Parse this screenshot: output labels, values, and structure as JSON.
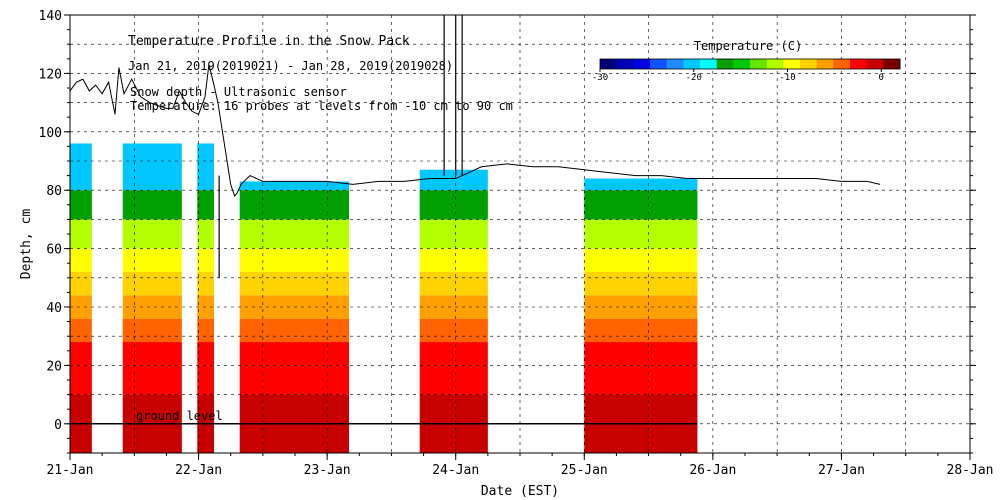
{
  "chart_data": {
    "type": "heatmap",
    "title": "Temperature Profile in the Snow Pack",
    "subtitle": "Jan 21, 2019(2019021) - Jan 28, 2019(2019028)",
    "notes": [
      "Snow depth - Ultrasonic sensor",
      "Temperature: 16 probes at levels from -10 cm to 90 cm"
    ],
    "xlabel": "Date (EST)",
    "ylabel": "Depth, cm",
    "x_ticks": [
      "21-Jan",
      "22-Jan",
      "23-Jan",
      "24-Jan",
      "25-Jan",
      "26-Jan",
      "27-Jan",
      "28-Jan"
    ],
    "xlim_days": [
      0,
      7
    ],
    "ylim": [
      -10,
      140
    ],
    "y_ticks": [
      0,
      20,
      40,
      60,
      80,
      100,
      120,
      140
    ],
    "ground_level_label": "ground level",
    "grid": "dashed",
    "colorbar": {
      "title": "Temperature (C)",
      "range": [
        -30,
        2
      ],
      "tick_labels": [
        "-30",
        "-20",
        "-10",
        "0"
      ],
      "tick_values": [
        -30,
        -20,
        -10,
        0
      ],
      "colors": [
        "#00007a",
        "#0000b4",
        "#0000e6",
        "#1450ff",
        "#1e8cff",
        "#00c8ff",
        "#00ffff",
        "#00a000",
        "#00c800",
        "#64e600",
        "#b4ff00",
        "#ffff00",
        "#ffd200",
        "#ffa000",
        "#ff6400",
        "#ff0000",
        "#c80000",
        "#780000"
      ]
    },
    "profile_bands": [
      {
        "depth_range": [
          -10,
          10
        ],
        "temperature_c": -1
      },
      {
        "depth_range": [
          10,
          20
        ],
        "temperature_c": -2
      },
      {
        "depth_range": [
          20,
          28
        ],
        "temperature_c": -3
      },
      {
        "depth_range": [
          28,
          36
        ],
        "temperature_c": -4
      },
      {
        "depth_range": [
          36,
          44
        ],
        "temperature_c": -6
      },
      {
        "depth_range": [
          44,
          52
        ],
        "temperature_c": -8
      },
      {
        "depth_range": [
          52,
          60
        ],
        "temperature_c": -10
      },
      {
        "depth_range": [
          60,
          70
        ],
        "temperature_c": -12
      },
      {
        "depth_range": [
          70,
          80
        ],
        "temperature_c": -16
      },
      {
        "depth_range": [
          80,
          96
        ],
        "temperature_c": -20
      }
    ],
    "segments": [
      {
        "start_day": 0.0,
        "end_day": 0.17,
        "top_cm": 96
      },
      {
        "start_day": 0.41,
        "end_day": 0.87,
        "top_cm": 96
      },
      {
        "start_day": 0.99,
        "end_day": 1.12,
        "top_cm": 96
      },
      {
        "start_day": 1.32,
        "end_day": 2.17,
        "top_cm": 83
      },
      {
        "start_day": 2.72,
        "end_day": 3.25,
        "top_cm": 87
      },
      {
        "start_day": 4.0,
        "end_day": 4.88,
        "top_cm": 84
      }
    ],
    "snow_depth_series": {
      "name": "Snow depth",
      "days": [
        0.0,
        0.05,
        0.1,
        0.15,
        0.2,
        0.25,
        0.3,
        0.35,
        0.38,
        0.42,
        0.48,
        0.55,
        0.62,
        0.68,
        0.75,
        0.8,
        0.85,
        0.9,
        0.95,
        1.0,
        1.05,
        1.08,
        1.12,
        1.15,
        1.2,
        1.25,
        1.28,
        1.3,
        1.33,
        1.4,
        1.5,
        1.6,
        1.8,
        2.0,
        2.2,
        2.4,
        2.6,
        2.8,
        3.0,
        3.1,
        3.2,
        3.4,
        3.6,
        3.8,
        4.0,
        4.2,
        4.4,
        4.6,
        4.8,
        5.0,
        5.2,
        5.4,
        5.6,
        5.8,
        6.0,
        6.2,
        6.3
      ],
      "depth_cm": [
        114,
        117,
        118,
        114,
        116,
        113,
        117,
        106,
        122,
        113,
        118,
        112,
        110,
        109,
        108,
        108,
        114,
        110,
        107,
        106,
        112,
        123,
        116,
        110,
        96,
        82,
        78,
        79,
        82,
        85,
        83,
        83,
        83,
        83,
        82,
        83,
        83,
        84,
        84,
        86,
        88,
        89,
        88,
        88,
        87,
        86,
        85,
        85,
        84,
        84,
        84,
        84,
        84,
        84,
        83,
        83,
        82
      ]
    },
    "snow_depth_spikes": [
      {
        "day": 1.16,
        "depth_cm": 50
      },
      {
        "day": 2.91,
        "depth_cm": 140
      },
      {
        "day": 3.0,
        "depth_cm": 140
      },
      {
        "day": 3.05,
        "depth_cm": 140
      }
    ]
  }
}
